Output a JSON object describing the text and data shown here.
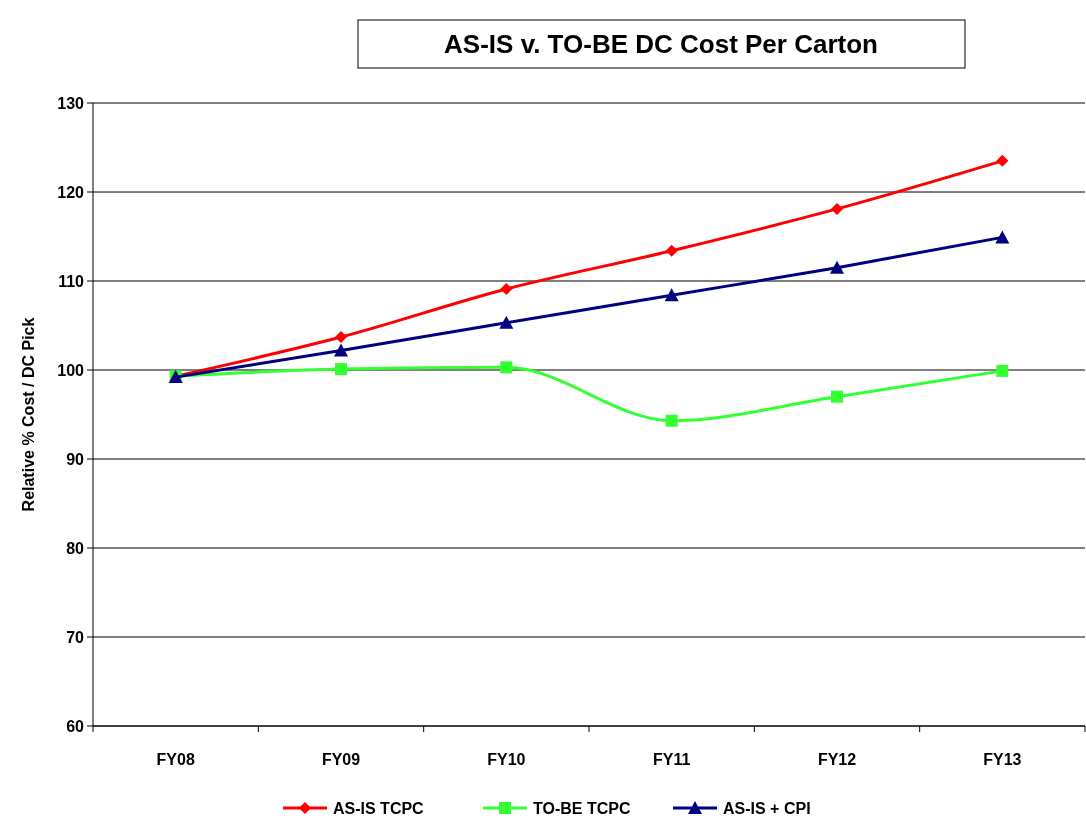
{
  "chart_data": {
    "type": "line",
    "title": "AS-IS v. TO-BE DC Cost Per Carton",
    "ylabel": "Relative % Cost / DC Pick",
    "categories": [
      "FY08",
      "FY09",
      "FY10",
      "FY11",
      "FY12",
      "FY13"
    ],
    "series": [
      {
        "name": "AS-IS TCPC",
        "color": "#ff0000",
        "marker": "diamond",
        "values": [
          99.3,
          103.7,
          109.1,
          113.4,
          118.1,
          123.5
        ]
      },
      {
        "name": "TO-BE TCPC",
        "color": "#33ff33",
        "marker": "square",
        "values": [
          99.3,
          100.1,
          100.3,
          94.3,
          97.0,
          99.9
        ]
      },
      {
        "name": "AS-IS + CPI",
        "color": "#000080",
        "marker": "triangle",
        "values": [
          99.2,
          102.2,
          105.3,
          108.4,
          111.5,
          114.9
        ]
      }
    ],
    "ylim": [
      60,
      130
    ],
    "yticks": [
      60,
      70,
      80,
      90,
      100,
      110,
      120,
      130
    ],
    "grid": "y",
    "legend": "bottom",
    "line_style": "solid"
  }
}
